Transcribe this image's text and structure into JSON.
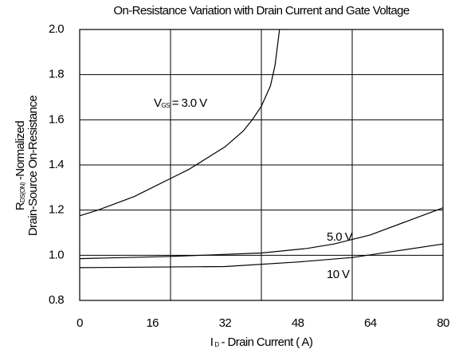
{
  "chart_data": {
    "type": "line",
    "title": "On-Resistance Variation with Drain Current and Gate Voltage",
    "x_label": {
      "symbol": "I",
      "subscript": "D",
      "text": "- Drain Current ( A)"
    },
    "y_label": {
      "symbol": "R",
      "subscript": "DS(ON)",
      "text": "-Normalized",
      "line2": "Drain-Source On-Resistance"
    },
    "xlim": [
      0,
      80
    ],
    "xticks": [
      0,
      16,
      32,
      48,
      64,
      80
    ],
    "xgrid": [
      20,
      40,
      60
    ],
    "ylim": [
      0.8,
      2.0
    ],
    "yticks": [
      0.8,
      {
        "value": 1,
        "label": "1.0"
      },
      1.2,
      1.4,
      1.6,
      1.8,
      {
        "value": 2,
        "label": "2.0"
      }
    ],
    "grid": true,
    "color": "#000000",
    "series": [
      {
        "name_prefix": "V",
        "name_sub": "GS",
        "name": "= 3.0 V",
        "x": [
          0,
          4,
          8,
          12,
          16,
          20,
          24,
          28,
          32,
          36,
          38,
          40,
          42,
          43,
          44
        ],
        "values": [
          1.175,
          1.2,
          1.23,
          1.26,
          1.3,
          1.34,
          1.38,
          1.43,
          1.48,
          1.55,
          1.6,
          1.66,
          1.75,
          1.84,
          2.0
        ]
      },
      {
        "name": "5.0 V",
        "x": [
          0,
          20,
          40,
          50,
          56,
          64,
          72,
          80
        ],
        "values": [
          0.985,
          0.995,
          1.01,
          1.03,
          1.05,
          1.09,
          1.15,
          1.21
        ]
      },
      {
        "name": "10 V",
        "x": [
          0,
          32,
          48,
          60,
          70,
          80
        ],
        "values": [
          0.945,
          0.95,
          0.97,
          0.99,
          1.02,
          1.05
        ]
      }
    ]
  }
}
